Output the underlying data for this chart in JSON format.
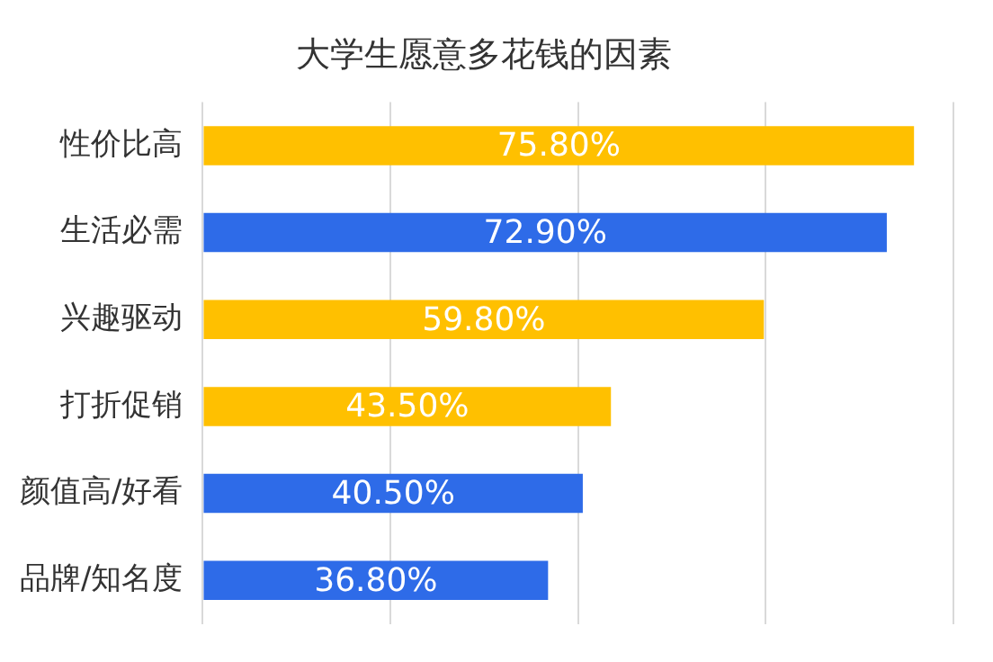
{
  "chart_data": {
    "type": "bar",
    "orientation": "horizontal",
    "title": "大学生愿意多花钱的因素",
    "categories": [
      "性价比高",
      "生活必需",
      "兴趣驱动",
      "打折促销",
      "颜值高/好看",
      "品牌/知名度"
    ],
    "values": [
      75.8,
      72.9,
      59.8,
      43.5,
      40.5,
      36.8
    ],
    "colors": [
      "#ffc000",
      "#2e6be8",
      "#ffc000",
      "#ffc000",
      "#2e6be8",
      "#2e6be8"
    ],
    "value_labels": [
      "75.80%",
      "72.90%",
      "59.80%",
      "43.50%",
      "40.50%",
      "36.80%"
    ],
    "xlim": [
      0,
      80
    ],
    "xticks": [
      {
        "value": 0,
        "label": null
      },
      {
        "value": 20,
        "label": null
      },
      {
        "value": 40,
        "label": null
      },
      {
        "value": 60,
        "label": null
      },
      {
        "value": 80,
        "label": null
      }
    ],
    "grid": "x",
    "tick_labels": "y",
    "legend": false
  }
}
